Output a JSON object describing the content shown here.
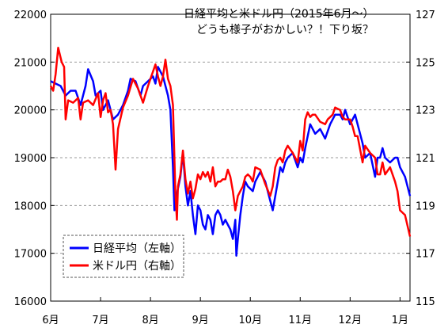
{
  "chart_data": {
    "type": "line",
    "title": "日経平均と米ドル円（2015年6月～）",
    "subtitle": "どうも様子がおかしい？！下り坂？",
    "x_ticks": [
      "6月",
      "7月",
      "8月",
      "9月",
      "10月",
      "11月",
      "12月",
      "1月"
    ],
    "x_range": [
      0,
      7.2
    ],
    "y_left": {
      "range": [
        16000,
        22000
      ],
      "ticks": [
        "16000",
        "17000",
        "18000",
        "19000",
        "20000",
        "21000",
        "22000"
      ]
    },
    "y_right": {
      "range": [
        115,
        127
      ],
      "ticks": [
        "115",
        "117",
        "119",
        "121",
        "123",
        "125",
        "127"
      ]
    },
    "grid": "horizontal-dashed",
    "legend_position": "bottom-left",
    "series": [
      {
        "name": "日経平均（左軸）",
        "axis": "left",
        "color": "#0000ff",
        "points": [
          [
            0.0,
            20600
          ],
          [
            0.1,
            20550
          ],
          [
            0.2,
            20500
          ],
          [
            0.3,
            20300
          ],
          [
            0.4,
            20400
          ],
          [
            0.5,
            20400
          ],
          [
            0.6,
            20100
          ],
          [
            0.7,
            20500
          ],
          [
            0.75,
            20850
          ],
          [
            0.85,
            20600
          ],
          [
            0.9,
            20300
          ],
          [
            1.0,
            20400
          ],
          [
            1.05,
            20000
          ],
          [
            1.15,
            20200
          ],
          [
            1.25,
            19800
          ],
          [
            1.35,
            19900
          ],
          [
            1.45,
            20100
          ],
          [
            1.55,
            20400
          ],
          [
            1.6,
            20650
          ],
          [
            1.7,
            20600
          ],
          [
            1.8,
            20300
          ],
          [
            1.85,
            20500
          ],
          [
            1.95,
            20600
          ],
          [
            2.05,
            20700
          ],
          [
            2.1,
            20550
          ],
          [
            2.15,
            20900
          ],
          [
            2.25,
            20700
          ],
          [
            2.35,
            20300
          ],
          [
            2.4,
            20000
          ],
          [
            2.45,
            18800
          ],
          [
            2.48,
            17900
          ],
          [
            2.52,
            18200
          ],
          [
            2.6,
            18600
          ],
          [
            2.65,
            19100
          ],
          [
            2.7,
            18400
          ],
          [
            2.75,
            18000
          ],
          [
            2.8,
            18300
          ],
          [
            2.85,
            17800
          ],
          [
            2.9,
            17400
          ],
          [
            2.95,
            18000
          ],
          [
            3.0,
            17900
          ],
          [
            3.05,
            17600
          ],
          [
            3.1,
            17500
          ],
          [
            3.15,
            17800
          ],
          [
            3.2,
            17700
          ],
          [
            3.25,
            17400
          ],
          [
            3.3,
            17800
          ],
          [
            3.35,
            17900
          ],
          [
            3.4,
            17800
          ],
          [
            3.45,
            17600
          ],
          [
            3.5,
            17700
          ],
          [
            3.55,
            17600
          ],
          [
            3.6,
            17500
          ],
          [
            3.65,
            17300
          ],
          [
            3.7,
            17700
          ],
          [
            3.72,
            16950
          ],
          [
            3.75,
            17300
          ],
          [
            3.8,
            17800
          ],
          [
            3.85,
            18200
          ],
          [
            3.9,
            18500
          ],
          [
            3.95,
            18400
          ],
          [
            4.05,
            18300
          ],
          [
            4.1,
            18500
          ],
          [
            4.2,
            18700
          ],
          [
            4.3,
            18500
          ],
          [
            4.4,
            18100
          ],
          [
            4.45,
            17900
          ],
          [
            4.5,
            18200
          ],
          [
            4.6,
            18800
          ],
          [
            4.65,
            18700
          ],
          [
            4.7,
            18900
          ],
          [
            4.75,
            19000
          ],
          [
            4.85,
            19100
          ],
          [
            4.95,
            18800
          ],
          [
            5.0,
            19000
          ],
          [
            5.05,
            18900
          ],
          [
            5.1,
            19200
          ],
          [
            5.2,
            19700
          ],
          [
            5.3,
            19500
          ],
          [
            5.4,
            19600
          ],
          [
            5.5,
            19400
          ],
          [
            5.6,
            19700
          ],
          [
            5.7,
            19900
          ],
          [
            5.8,
            19900
          ],
          [
            5.85,
            19800
          ],
          [
            5.9,
            20000
          ],
          [
            6.0,
            19700
          ],
          [
            6.1,
            19900
          ],
          [
            6.15,
            19700
          ],
          [
            6.25,
            19300
          ],
          [
            6.3,
            19000
          ],
          [
            6.4,
            19100
          ],
          [
            6.5,
            18600
          ],
          [
            6.55,
            19000
          ],
          [
            6.6,
            19000
          ],
          [
            6.65,
            19200
          ],
          [
            6.7,
            19000
          ],
          [
            6.8,
            18900
          ],
          [
            6.9,
            19000
          ],
          [
            6.95,
            19000
          ],
          [
            7.0,
            18800
          ],
          [
            7.1,
            18600
          ],
          [
            7.2,
            18200
          ]
        ]
      },
      {
        "name": "米ドル円（右軸）",
        "axis": "right",
        "color": "#ff0000",
        "points": [
          [
            0.0,
            124.0
          ],
          [
            0.05,
            123.8
          ],
          [
            0.1,
            124.5
          ],
          [
            0.15,
            125.6
          ],
          [
            0.22,
            125.0
          ],
          [
            0.27,
            124.8
          ],
          [
            0.3,
            122.6
          ],
          [
            0.35,
            123.4
          ],
          [
            0.45,
            123.3
          ],
          [
            0.55,
            123.5
          ],
          [
            0.6,
            122.6
          ],
          [
            0.65,
            123.3
          ],
          [
            0.75,
            123.4
          ],
          [
            0.85,
            123.2
          ],
          [
            0.95,
            123.7
          ],
          [
            1.0,
            122.7
          ],
          [
            1.05,
            123.4
          ],
          [
            1.1,
            123.7
          ],
          [
            1.15,
            122.9
          ],
          [
            1.2,
            123.0
          ],
          [
            1.25,
            122.4
          ],
          [
            1.3,
            120.5
          ],
          [
            1.35,
            122.2
          ],
          [
            1.45,
            123.1
          ],
          [
            1.55,
            123.6
          ],
          [
            1.65,
            124.3
          ],
          [
            1.75,
            123.9
          ],
          [
            1.85,
            123.3
          ],
          [
            1.95,
            124.0
          ],
          [
            2.0,
            124.3
          ],
          [
            2.1,
            124.9
          ],
          [
            2.15,
            124.4
          ],
          [
            2.2,
            124.0
          ],
          [
            2.25,
            124.4
          ],
          [
            2.3,
            125.1
          ],
          [
            2.35,
            124.3
          ],
          [
            2.4,
            124.0
          ],
          [
            2.45,
            123.2
          ],
          [
            2.5,
            119.5
          ],
          [
            2.53,
            118.4
          ],
          [
            2.55,
            119.8
          ],
          [
            2.6,
            120.3
          ],
          [
            2.65,
            121.3
          ],
          [
            2.7,
            120.1
          ],
          [
            2.75,
            119.5
          ],
          [
            2.8,
            120.0
          ],
          [
            2.85,
            119.3
          ],
          [
            2.9,
            119.7
          ],
          [
            2.95,
            120.3
          ],
          [
            3.0,
            120.1
          ],
          [
            3.05,
            120.4
          ],
          [
            3.1,
            120.2
          ],
          [
            3.15,
            120.4
          ],
          [
            3.2,
            120.0
          ],
          [
            3.25,
            120.6
          ],
          [
            3.3,
            119.8
          ],
          [
            3.35,
            120.0
          ],
          [
            3.4,
            120.0
          ],
          [
            3.45,
            120.1
          ],
          [
            3.5,
            120.1
          ],
          [
            3.55,
            120.5
          ],
          [
            3.6,
            120.2
          ],
          [
            3.65,
            119.6
          ],
          [
            3.7,
            118.8
          ],
          [
            3.75,
            119.4
          ],
          [
            3.8,
            119.6
          ],
          [
            3.85,
            119.8
          ],
          [
            3.9,
            120.2
          ],
          [
            3.95,
            120.3
          ],
          [
            4.0,
            120.2
          ],
          [
            4.05,
            120.0
          ],
          [
            4.1,
            120.6
          ],
          [
            4.2,
            120.5
          ],
          [
            4.3,
            119.9
          ],
          [
            4.4,
            119.4
          ],
          [
            4.45,
            119.8
          ],
          [
            4.5,
            120.6
          ],
          [
            4.55,
            120.9
          ],
          [
            4.6,
            121.0
          ],
          [
            4.65,
            120.8
          ],
          [
            4.7,
            121.3
          ],
          [
            4.75,
            121.5
          ],
          [
            4.85,
            121.2
          ],
          [
            4.95,
            120.8
          ],
          [
            5.0,
            121.7
          ],
          [
            5.05,
            121.3
          ],
          [
            5.1,
            122.6
          ],
          [
            5.15,
            122.9
          ],
          [
            5.2,
            122.7
          ],
          [
            5.25,
            122.8
          ],
          [
            5.3,
            122.8
          ],
          [
            5.4,
            122.5
          ],
          [
            5.5,
            122.4
          ],
          [
            5.55,
            122.6
          ],
          [
            5.65,
            122.8
          ],
          [
            5.7,
            123.1
          ],
          [
            5.8,
            123.0
          ],
          [
            5.85,
            122.7
          ],
          [
            5.9,
            122.6
          ],
          [
            6.0,
            122.6
          ],
          [
            6.05,
            122.3
          ],
          [
            6.1,
            121.9
          ],
          [
            6.15,
            121.9
          ],
          [
            6.25,
            120.8
          ],
          [
            6.3,
            121.5
          ],
          [
            6.4,
            121.2
          ],
          [
            6.5,
            121.0
          ],
          [
            6.55,
            120.3
          ],
          [
            6.6,
            120.3
          ],
          [
            6.65,
            120.8
          ],
          [
            6.7,
            120.3
          ],
          [
            6.8,
            120.6
          ],
          [
            6.9,
            120.0
          ],
          [
            6.95,
            119.6
          ],
          [
            7.0,
            118.8
          ],
          [
            7.1,
            118.6
          ],
          [
            7.2,
            117.7
          ]
        ]
      }
    ]
  }
}
